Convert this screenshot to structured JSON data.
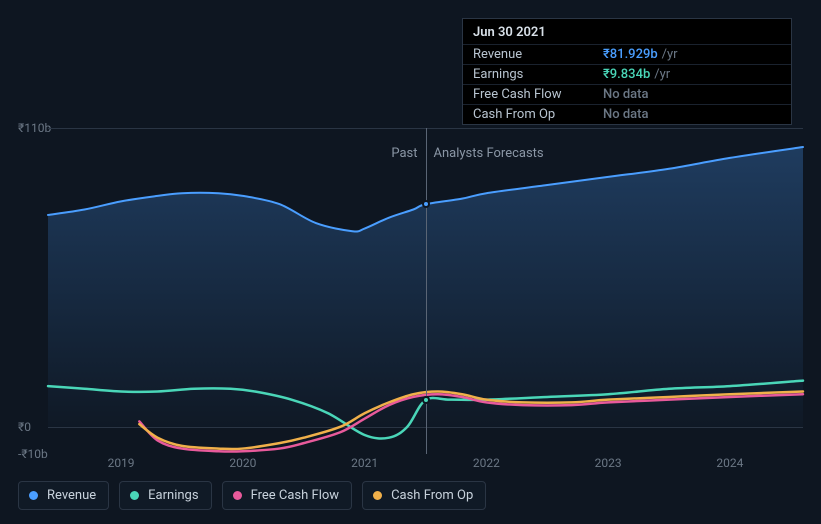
{
  "chart": {
    "type": "line",
    "background_color": "#0e1621",
    "grid_color": "#2a3544",
    "text_color": "#6b7785",
    "y_axis": {
      "min": -10,
      "max": 110,
      "ticks": [
        {
          "v": 110,
          "label": "₹110b",
          "gridline": true
        },
        {
          "v": 0,
          "label": "₹0",
          "gridline": true
        },
        {
          "v": -10,
          "label": "-₹10b",
          "gridline": false
        }
      ]
    },
    "x_axis": {
      "min": 2018.4,
      "max": 2024.6,
      "ticks": [
        {
          "v": 2019,
          "label": "2019"
        },
        {
          "v": 2020,
          "label": "2020"
        },
        {
          "v": 2021,
          "label": "2021"
        },
        {
          "v": 2022,
          "label": "2022"
        },
        {
          "v": 2023,
          "label": "2023"
        },
        {
          "v": 2024,
          "label": "2024"
        }
      ],
      "split": {
        "x": 2021.5,
        "left_label": "Past",
        "right_label": "Analysts Forecasts"
      }
    },
    "series": [
      {
        "id": "revenue",
        "label": "Revenue",
        "color": "#4a9eff",
        "width": 2,
        "fill_gradient_top": "rgba(74,158,255,0.28)",
        "fill_gradient_bottom": "rgba(74,158,255,0.02)",
        "points": [
          [
            2018.4,
            78
          ],
          [
            2018.7,
            80
          ],
          [
            2019.0,
            83
          ],
          [
            2019.3,
            85
          ],
          [
            2019.5,
            86
          ],
          [
            2019.8,
            86
          ],
          [
            2020.0,
            85
          ],
          [
            2020.3,
            82
          ],
          [
            2020.6,
            75
          ],
          [
            2020.9,
            72
          ],
          [
            2021.0,
            73
          ],
          [
            2021.2,
            77
          ],
          [
            2021.4,
            80
          ],
          [
            2021.5,
            81.93
          ],
          [
            2021.8,
            84
          ],
          [
            2022.0,
            86
          ],
          [
            2022.5,
            89
          ],
          [
            2023.0,
            92
          ],
          [
            2023.5,
            95
          ],
          [
            2024.0,
            99
          ],
          [
            2024.6,
            103
          ]
        ]
      },
      {
        "id": "earnings",
        "label": "Earnings",
        "color": "#4ad6b8",
        "width": 2.5,
        "points": [
          [
            2018.4,
            15
          ],
          [
            2018.7,
            14
          ],
          [
            2019.0,
            13
          ],
          [
            2019.3,
            13
          ],
          [
            2019.6,
            14
          ],
          [
            2019.9,
            14
          ],
          [
            2020.1,
            13
          ],
          [
            2020.4,
            10
          ],
          [
            2020.7,
            5
          ],
          [
            2021.0,
            -3
          ],
          [
            2021.2,
            -4
          ],
          [
            2021.35,
            0
          ],
          [
            2021.5,
            9.83
          ],
          [
            2021.7,
            10
          ],
          [
            2022.0,
            10
          ],
          [
            2022.5,
            11
          ],
          [
            2023.0,
            12
          ],
          [
            2023.5,
            14
          ],
          [
            2024.0,
            15
          ],
          [
            2024.6,
            17
          ]
        ]
      },
      {
        "id": "fcf",
        "label": "Free Cash Flow",
        "color": "#e85a9b",
        "width": 2.5,
        "points": [
          [
            2019.15,
            2
          ],
          [
            2019.3,
            -5
          ],
          [
            2019.5,
            -8
          ],
          [
            2019.8,
            -9
          ],
          [
            2020.0,
            -9
          ],
          [
            2020.3,
            -8
          ],
          [
            2020.5,
            -6
          ],
          [
            2020.8,
            -2
          ],
          [
            2021.0,
            3
          ],
          [
            2021.2,
            8
          ],
          [
            2021.4,
            11
          ],
          [
            2021.6,
            12
          ],
          [
            2021.8,
            11
          ],
          [
            2022.0,
            9
          ],
          [
            2022.3,
            8
          ],
          [
            2022.7,
            8
          ],
          [
            2023.0,
            9
          ],
          [
            2023.5,
            10
          ],
          [
            2024.0,
            11
          ],
          [
            2024.6,
            12
          ]
        ]
      },
      {
        "id": "cfo",
        "label": "Cash From Op",
        "color": "#f0b04a",
        "width": 2.5,
        "points": [
          [
            2019.15,
            1
          ],
          [
            2019.3,
            -4
          ],
          [
            2019.5,
            -7
          ],
          [
            2019.8,
            -8
          ],
          [
            2020.0,
            -8
          ],
          [
            2020.3,
            -6
          ],
          [
            2020.5,
            -4
          ],
          [
            2020.8,
            0
          ],
          [
            2021.0,
            5
          ],
          [
            2021.2,
            9
          ],
          [
            2021.4,
            12
          ],
          [
            2021.6,
            13
          ],
          [
            2021.8,
            12
          ],
          [
            2022.0,
            10
          ],
          [
            2022.3,
            9
          ],
          [
            2022.7,
            9
          ],
          [
            2023.0,
            10
          ],
          [
            2023.5,
            11
          ],
          [
            2024.0,
            12
          ],
          [
            2024.6,
            13
          ]
        ]
      }
    ],
    "hover": {
      "x": 2021.5,
      "dots": [
        {
          "series": "revenue",
          "y": 81.93
        },
        {
          "series": "earnings",
          "y": 9.83
        }
      ]
    }
  },
  "tooltip": {
    "title": "Jun 30 2021",
    "rows": [
      {
        "key": "Revenue",
        "value": "₹81.929b",
        "unit": "/yr",
        "color": "#4a9eff"
      },
      {
        "key": "Earnings",
        "value": "₹9.834b",
        "unit": "/yr",
        "color": "#4ad6b8"
      },
      {
        "key": "Free Cash Flow",
        "value": "No data",
        "unit": "",
        "color": "#6b7785"
      },
      {
        "key": "Cash From Op",
        "value": "No data",
        "unit": "",
        "color": "#6b7785"
      }
    ]
  },
  "legend": [
    {
      "id": "revenue",
      "label": "Revenue",
      "color": "#4a9eff"
    },
    {
      "id": "earnings",
      "label": "Earnings",
      "color": "#4ad6b8"
    },
    {
      "id": "fcf",
      "label": "Free Cash Flow",
      "color": "#e85a9b"
    },
    {
      "id": "cfo",
      "label": "Cash From Op",
      "color": "#f0b04a"
    }
  ]
}
